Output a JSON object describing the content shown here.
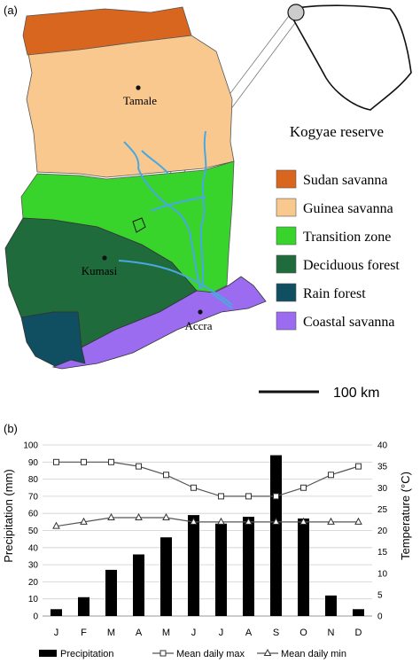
{
  "panel_a": {
    "label": "(a)",
    "cities": [
      "Tamale",
      "Kumasi",
      "Accra"
    ],
    "inset_title": "Kogyae reserve",
    "legend": [
      {
        "label": "Sudan savanna",
        "color": "#d9661f"
      },
      {
        "label": "Guinea savanna",
        "color": "#f8c88f"
      },
      {
        "label": "Transition zone",
        "color": "#38d42c"
      },
      {
        "label": "Deciduous forest",
        "color": "#1f6b3c"
      },
      {
        "label": "Rain forest",
        "color": "#0f4f61"
      },
      {
        "label": "Coastal savanna",
        "color": "#9b6cf0"
      }
    ],
    "scale_label": "100 km",
    "river_color": "#4aa8e0"
  },
  "panel_b": {
    "label": "(b)",
    "chart_data": {
      "type": "bar",
      "categories": [
        "J",
        "F",
        "M",
        "A",
        "M",
        "J",
        "J",
        "A",
        "S",
        "O",
        "N",
        "D"
      ],
      "series": [
        {
          "name": "Precipitation",
          "type": "bar",
          "axis": "left",
          "values": [
            4,
            11,
            27,
            36,
            46,
            59,
            54,
            58,
            94,
            57,
            12,
            4
          ]
        },
        {
          "name": "Mean daily max",
          "type": "line",
          "marker": "square",
          "axis": "right",
          "values": [
            36,
            36,
            36,
            35,
            33,
            30,
            28,
            28,
            28,
            30,
            33,
            35
          ]
        },
        {
          "name": "Mean daily min",
          "type": "line",
          "marker": "triangle",
          "axis": "right",
          "values": [
            21,
            22,
            23,
            23,
            23,
            22,
            22,
            22,
            22,
            22,
            22,
            22
          ]
        }
      ],
      "ylabel": "Precipitation (mm)",
      "y2label": "Temperature (°C)",
      "ylim": [
        0,
        100
      ],
      "y2lim": [
        0,
        40
      ],
      "yticks": [
        "0",
        "10",
        "20",
        "30",
        "40",
        "50",
        "60",
        "70",
        "80",
        "90",
        "100"
      ],
      "y2ticks": [
        "0",
        "5",
        "10",
        "15",
        "20",
        "25",
        "30",
        "35",
        "40"
      ],
      "grid": true,
      "legend_position": "bottom",
      "bar_color": "#000000",
      "line_color": "#555555"
    }
  }
}
